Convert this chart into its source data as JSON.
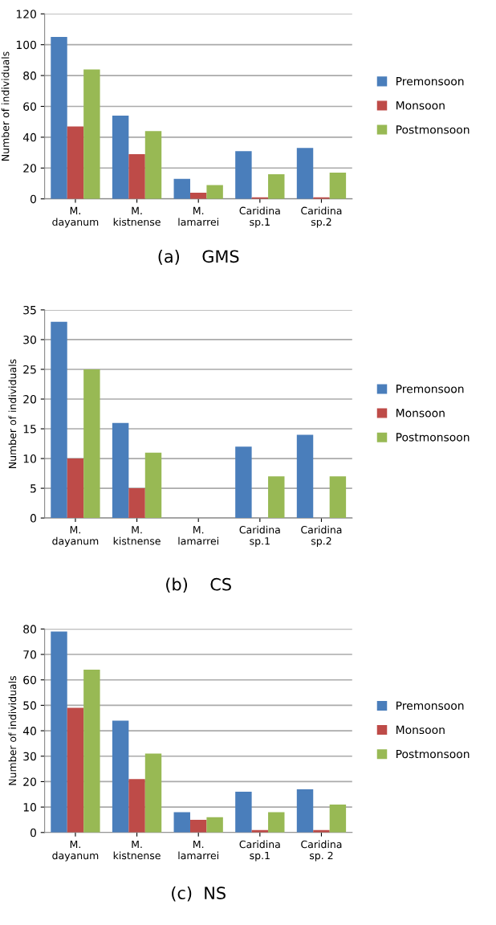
{
  "chart_data": [
    {
      "type": "bar",
      "title": "(a)    GMS",
      "ylabel": "Number of individuals",
      "categories": [
        "M.\ndayanum",
        "M.\nkistnense",
        "M.\nlamarrei",
        "Caridina\nsp.1",
        "Caridina\nsp.2"
      ],
      "series": [
        {
          "name": "Premonsoon",
          "color": "#4a7ebb",
          "values": [
            105,
            54,
            13,
            31,
            33
          ]
        },
        {
          "name": "Monsoon",
          "color": "#be4b48",
          "values": [
            47,
            29,
            4,
            1,
            1
          ]
        },
        {
          "name": "Postmonsoon",
          "color": "#98b954",
          "values": [
            84,
            44,
            9,
            16,
            17
          ]
        }
      ],
      "ylim": [
        0,
        120
      ],
      "yticks": [
        0,
        20,
        40,
        60,
        80,
        100,
        120
      ],
      "grid": "y",
      "legend": "right"
    },
    {
      "type": "bar",
      "title": "(b)    CS",
      "ylabel": "Number of individuals",
      "categories": [
        "M.\ndayanum",
        "M.\nkistnense",
        "M.\nlamarrei",
        "Caridina\nsp.1",
        "Caridina\nsp.2"
      ],
      "series": [
        {
          "name": "Premonsoon",
          "color": "#4a7ebb",
          "values": [
            33,
            16,
            0,
            12,
            14
          ]
        },
        {
          "name": "Monsoon",
          "color": "#be4b48",
          "values": [
            10,
            5,
            0,
            0,
            0
          ]
        },
        {
          "name": "Postmonsoon",
          "color": "#98b954",
          "values": [
            25,
            11,
            0,
            7,
            7
          ]
        }
      ],
      "ylim": [
        0,
        35
      ],
      "yticks": [
        0,
        5,
        10,
        15,
        20,
        25,
        30,
        35
      ],
      "grid": "y",
      "legend": "right"
    },
    {
      "type": "bar",
      "title": "(c)  NS",
      "ylabel": "Number of individuals",
      "categories": [
        "M.\ndayanum",
        "M.\nkistnense",
        "M.\nlamarrei",
        "Caridina\nsp.1",
        "Caridina\nsp. 2"
      ],
      "series": [
        {
          "name": "Premonsoon",
          "color": "#4a7ebb",
          "values": [
            79,
            44,
            8,
            16,
            17
          ]
        },
        {
          "name": "Monsoon",
          "color": "#be4b48",
          "values": [
            49,
            21,
            5,
            1,
            1
          ]
        },
        {
          "name": "Postmonsoon",
          "color": "#98b954",
          "values": [
            64,
            31,
            6,
            8,
            11
          ]
        }
      ],
      "ylim": [
        0,
        80
      ],
      "yticks": [
        0,
        10,
        20,
        30,
        40,
        50,
        60,
        70,
        80
      ],
      "grid": "y",
      "legend": "right"
    }
  ]
}
